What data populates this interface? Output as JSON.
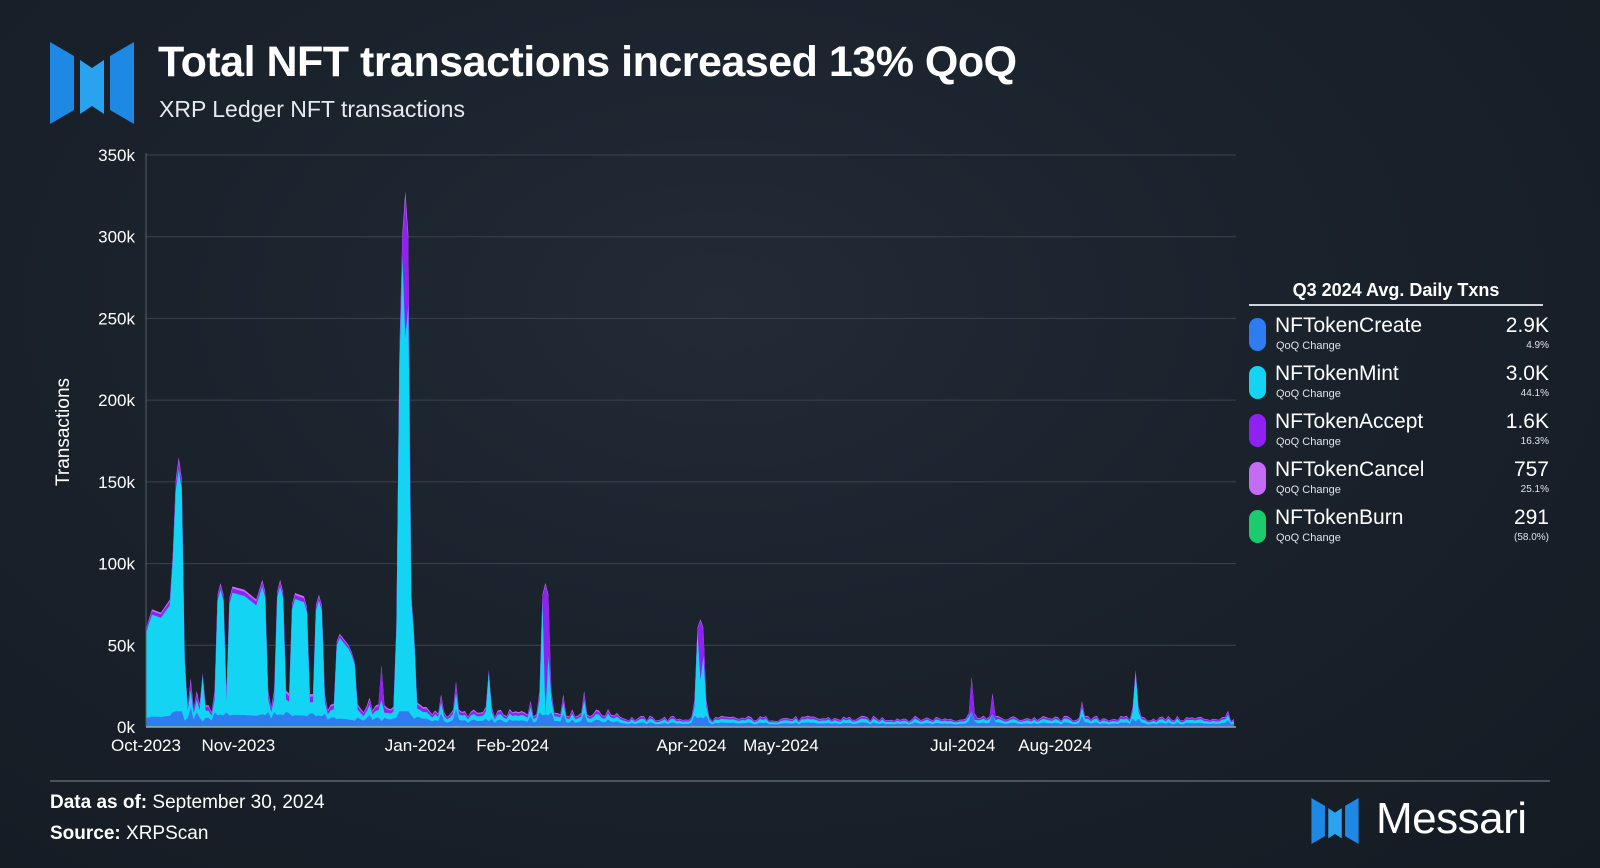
{
  "header": {
    "title": "Total NFT transactions increased 13% QoQ",
    "subtitle": "XRP Ledger NFT transactions"
  },
  "legend": {
    "title": "Q3 2024 Avg. Daily Txns",
    "items": [
      {
        "name": "NFTokenCreate",
        "sub": "QoQ Change",
        "value": "2.9K",
        "change": "4.9%",
        "color": "#2f7cf0"
      },
      {
        "name": "NFTokenMint",
        "sub": "QoQ Change",
        "value": "3.0K",
        "change": "44.1%",
        "color": "#14d4f4"
      },
      {
        "name": "NFTokenAccept",
        "sub": "QoQ Change",
        "value": "1.6K",
        "change": "16.3%",
        "color": "#8f22f2"
      },
      {
        "name": "NFTokenCancel",
        "sub": "QoQ Change",
        "value": "757",
        "change": "25.1%",
        "color": "#c46cf6"
      },
      {
        "name": "NFTokenBurn",
        "sub": "QoQ Change",
        "value": "291",
        "change": "(58.0%)",
        "color": "#1ccb6b"
      }
    ]
  },
  "footer": {
    "date_label": "Data as of:",
    "date_value": "September 30, 2024",
    "source_label": "Source:",
    "source_value": "XRPScan"
  },
  "brand": {
    "name": "Messari"
  },
  "chart_data": {
    "type": "area",
    "title": "Total NFT transactions increased 13% QoQ",
    "subtitle": "XRP Ledger NFT transactions",
    "xlabel": "",
    "ylabel": "Transactions",
    "ylim": [
      0,
      350000
    ],
    "y_ticks": [
      "0k",
      "50k",
      "100k",
      "150k",
      "200k",
      "250k",
      "300k",
      "350k"
    ],
    "x_ticks": [
      "Oct-2023",
      "Nov-2023",
      "Jan-2024",
      "Feb-2024",
      "Apr-2024",
      "May-2024",
      "Jul-2024",
      "Aug-2024"
    ],
    "x_range": [
      "2023-10-01",
      "2024-09-30"
    ],
    "grid": "horizontal",
    "stacked": true,
    "series_colors": {
      "NFTokenBurn": "#1ccb6b",
      "NFTokenCreate": "#2f7cf0",
      "NFTokenMint": "#14d4f4",
      "NFTokenAccept": "#8f22f2",
      "NFTokenCancel": "#c46cf6"
    },
    "daily_total_approx": [
      [
        "2023-10-01",
        60000
      ],
      [
        "2023-10-03",
        72000
      ],
      [
        "2023-10-06",
        70000
      ],
      [
        "2023-10-09",
        78000
      ],
      [
        "2023-10-12",
        165000
      ],
      [
        "2023-10-14",
        15000
      ],
      [
        "2023-10-16",
        30000
      ],
      [
        "2023-10-18",
        22000
      ],
      [
        "2023-10-20",
        33000
      ],
      [
        "2023-10-22",
        8000
      ],
      [
        "2023-10-26",
        88000
      ],
      [
        "2023-10-27",
        10000
      ],
      [
        "2023-10-30",
        86000
      ],
      [
        "2023-11-03",
        84000
      ],
      [
        "2023-11-07",
        78000
      ],
      [
        "2023-11-09",
        90000
      ],
      [
        "2023-11-12",
        10000
      ],
      [
        "2023-11-15",
        90000
      ],
      [
        "2023-11-17",
        10000
      ],
      [
        "2023-11-20",
        82000
      ],
      [
        "2023-11-23",
        80000
      ],
      [
        "2023-11-28",
        81000
      ],
      [
        "2023-12-05",
        57000
      ],
      [
        "2023-12-08",
        50000
      ],
      [
        "2023-12-10",
        40000
      ],
      [
        "2023-12-15",
        18000
      ],
      [
        "2023-12-19",
        38000
      ],
      [
        "2023-12-26",
        250000
      ],
      [
        "2023-12-27",
        328000
      ],
      [
        "2023-12-29",
        60000
      ],
      [
        "2024-01-08",
        20000
      ],
      [
        "2024-01-13",
        28000
      ],
      [
        "2024-01-24",
        35000
      ],
      [
        "2024-02-07",
        16000
      ],
      [
        "2024-02-12",
        88000
      ],
      [
        "2024-02-18",
        20000
      ],
      [
        "2024-02-25",
        22000
      ],
      [
        "2024-03-01",
        10000
      ],
      [
        "2024-04-04",
        66000
      ],
      [
        "2024-05-01",
        5000
      ],
      [
        "2024-06-01",
        5000
      ],
      [
        "2024-07-04",
        24000
      ],
      [
        "2024-07-11",
        19000
      ],
      [
        "2024-08-01",
        5000
      ],
      [
        "2024-08-10",
        16000
      ],
      [
        "2024-08-28",
        35000
      ],
      [
        "2024-09-15",
        5000
      ],
      [
        "2024-09-28",
        10000
      ]
    ]
  }
}
